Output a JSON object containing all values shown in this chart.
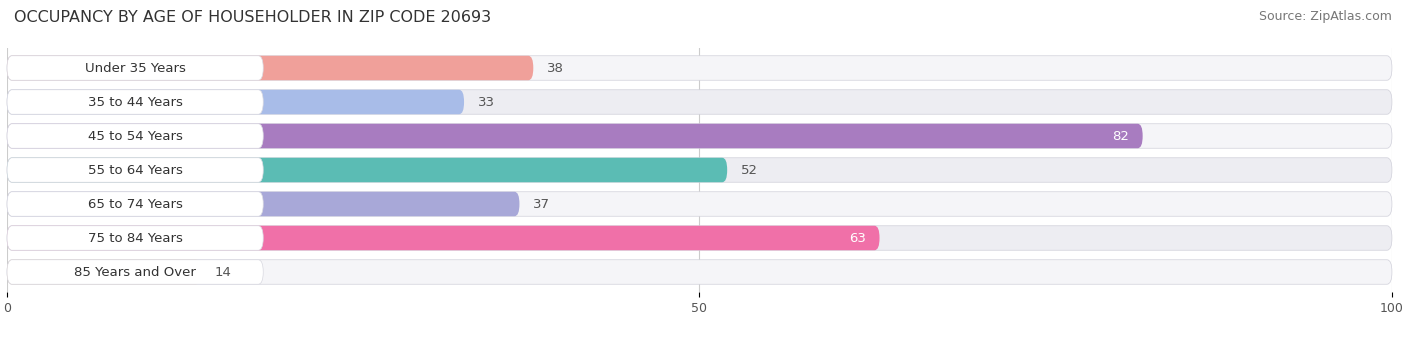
{
  "title": "OCCUPANCY BY AGE OF HOUSEHOLDER IN ZIP CODE 20693",
  "source": "Source: ZipAtlas.com",
  "categories": [
    "Under 35 Years",
    "35 to 44 Years",
    "45 to 54 Years",
    "55 to 64 Years",
    "65 to 74 Years",
    "75 to 84 Years",
    "85 Years and Over"
  ],
  "values": [
    38,
    33,
    82,
    52,
    37,
    63,
    14
  ],
  "bar_colors": [
    "#f0a09a",
    "#a8bce8",
    "#a87cc0",
    "#5bbcb4",
    "#a8a8d8",
    "#f070a8",
    "#f5c898"
  ],
  "bar_bg_color": "#e8e8ee",
  "xlim": [
    0,
    100
  ],
  "xlabel_ticks": [
    0,
    50,
    100
  ],
  "title_fontsize": 11.5,
  "source_fontsize": 9,
  "label_fontsize": 9.5,
  "value_fontsize": 9.5,
  "bar_height": 0.72,
  "background_color": "#ffffff",
  "row_bg_colors": [
    "#f5f5f8",
    "#ededf2"
  ]
}
